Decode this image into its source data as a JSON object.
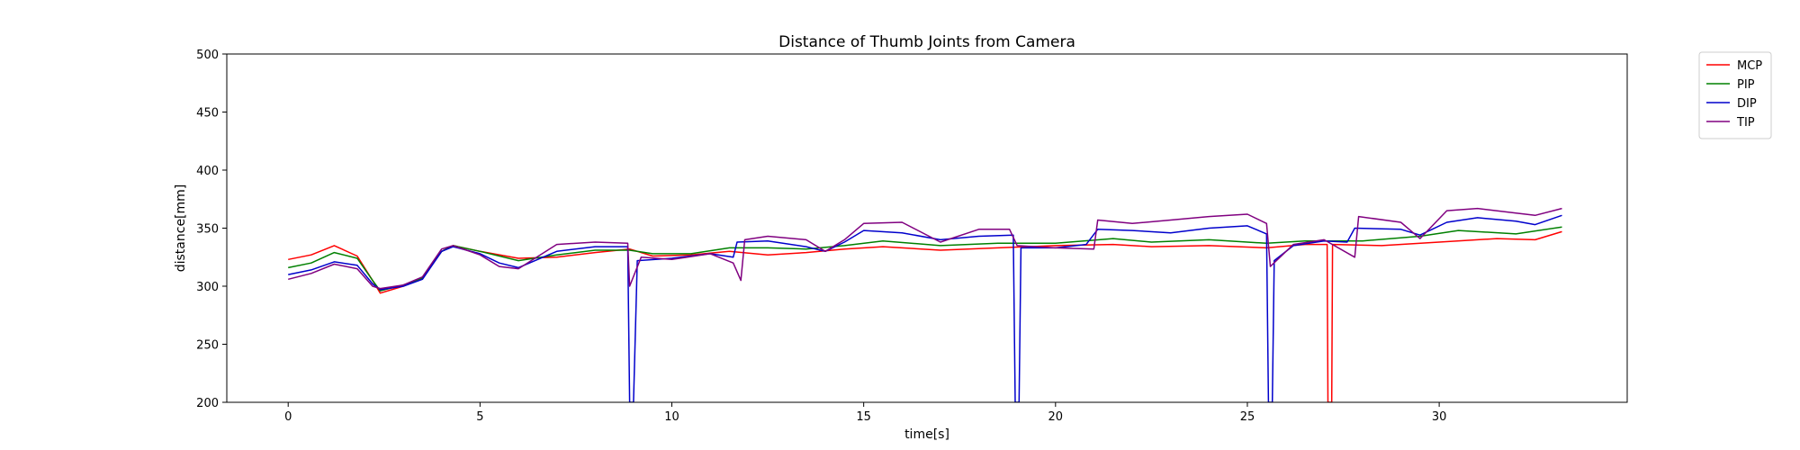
{
  "chart_data": {
    "type": "line",
    "title": "Distance of Thumb Joints from Camera",
    "xlabel": "time[s]",
    "ylabel": "distance[mm]",
    "xlim": [
      -1.6,
      34.9
    ],
    "ylim": [
      200,
      500
    ],
    "xticks": [
      0,
      5,
      10,
      15,
      20,
      25,
      30
    ],
    "yticks": [
      200,
      250,
      300,
      350,
      400,
      450,
      500
    ],
    "legend_position": "upper-right-outside",
    "grid": false,
    "series": [
      {
        "name": "MCP",
        "color": "#ff0000",
        "points": [
          [
            0,
            323
          ],
          [
            0.6,
            327
          ],
          [
            1.2,
            335
          ],
          [
            1.8,
            326
          ],
          [
            2.2,
            305
          ],
          [
            2.4,
            294
          ],
          [
            3.0,
            300
          ],
          [
            3.5,
            307
          ],
          [
            4.0,
            330
          ],
          [
            4.3,
            335
          ],
          [
            5.0,
            330
          ],
          [
            6.0,
            324
          ],
          [
            7.0,
            325
          ],
          [
            8.0,
            329
          ],
          [
            8.9,
            332
          ],
          [
            9.5,
            326
          ],
          [
            10.5,
            327
          ],
          [
            11.5,
            330
          ],
          [
            12.5,
            327
          ],
          [
            13.5,
            329
          ],
          [
            14.5,
            332
          ],
          [
            15.5,
            334
          ],
          [
            17.0,
            331
          ],
          [
            18.5,
            333
          ],
          [
            20.0,
            335
          ],
          [
            21.5,
            336
          ],
          [
            22.5,
            334
          ],
          [
            24.0,
            335
          ],
          [
            25.5,
            333
          ],
          [
            26.5,
            336
          ],
          [
            27.08,
            336
          ],
          [
            27.1,
            200
          ],
          [
            27.2,
            200
          ],
          [
            27.22,
            336
          ],
          [
            28.5,
            335
          ],
          [
            30.0,
            338
          ],
          [
            31.5,
            341
          ],
          [
            32.5,
            340
          ],
          [
            33.2,
            347
          ]
        ]
      },
      {
        "name": "PIP",
        "color": "#008000",
        "points": [
          [
            0,
            316
          ],
          [
            0.6,
            320
          ],
          [
            1.2,
            329
          ],
          [
            1.8,
            324
          ],
          [
            2.2,
            305
          ],
          [
            2.4,
            296
          ],
          [
            3.0,
            301
          ],
          [
            3.5,
            307
          ],
          [
            4.0,
            330
          ],
          [
            4.3,
            335
          ],
          [
            5.0,
            330
          ],
          [
            6.0,
            322
          ],
          [
            7.0,
            327
          ],
          [
            8.0,
            331
          ],
          [
            8.9,
            331
          ],
          [
            9.5,
            328
          ],
          [
            10.5,
            328
          ],
          [
            11.5,
            333
          ],
          [
            12.5,
            333
          ],
          [
            13.5,
            332
          ],
          [
            14.5,
            335
          ],
          [
            15.5,
            339
          ],
          [
            17.0,
            335
          ],
          [
            18.5,
            337
          ],
          [
            20.0,
            337
          ],
          [
            21.5,
            341
          ],
          [
            22.5,
            338
          ],
          [
            24.0,
            340
          ],
          [
            25.5,
            337
          ],
          [
            26.5,
            339
          ],
          [
            28.0,
            339
          ],
          [
            29.5,
            343
          ],
          [
            30.5,
            348
          ],
          [
            32.0,
            345
          ],
          [
            33.2,
            351
          ]
        ]
      },
      {
        "name": "DIP",
        "color": "#0000cc",
        "points": [
          [
            0,
            310
          ],
          [
            0.6,
            314
          ],
          [
            1.2,
            321
          ],
          [
            1.8,
            318
          ],
          [
            2.2,
            302
          ],
          [
            2.4,
            297
          ],
          [
            3.0,
            300
          ],
          [
            3.5,
            306
          ],
          [
            4.0,
            330
          ],
          [
            4.3,
            334
          ],
          [
            5.0,
            328
          ],
          [
            5.5,
            320
          ],
          [
            6.0,
            316
          ],
          [
            7.0,
            330
          ],
          [
            8.0,
            334
          ],
          [
            8.85,
            334
          ],
          [
            8.9,
            200
          ],
          [
            9.0,
            200
          ],
          [
            9.1,
            322
          ],
          [
            10.0,
            324
          ],
          [
            11.0,
            328
          ],
          [
            11.6,
            325
          ],
          [
            11.7,
            338
          ],
          [
            12.5,
            339
          ],
          [
            13.5,
            334
          ],
          [
            14.0,
            330
          ],
          [
            14.5,
            338
          ],
          [
            15.0,
            348
          ],
          [
            16.0,
            346
          ],
          [
            17.0,
            340
          ],
          [
            18.0,
            343
          ],
          [
            18.9,
            344
          ],
          [
            18.95,
            200
          ],
          [
            19.05,
            200
          ],
          [
            19.1,
            333
          ],
          [
            20.0,
            333
          ],
          [
            20.8,
            336
          ],
          [
            21.1,
            349
          ],
          [
            22.0,
            348
          ],
          [
            23.0,
            346
          ],
          [
            24.0,
            350
          ],
          [
            25.0,
            352
          ],
          [
            25.5,
            345
          ],
          [
            25.55,
            200
          ],
          [
            25.65,
            200
          ],
          [
            25.7,
            322
          ],
          [
            26.2,
            335
          ],
          [
            27.0,
            339
          ],
          [
            27.6,
            338
          ],
          [
            27.8,
            350
          ],
          [
            29.0,
            349
          ],
          [
            29.5,
            344
          ],
          [
            30.2,
            355
          ],
          [
            31.0,
            359
          ],
          [
            32.0,
            356
          ],
          [
            32.5,
            353
          ],
          [
            33.2,
            361
          ]
        ]
      },
      {
        "name": "TIP",
        "color": "#800080",
        "points": [
          [
            0,
            306
          ],
          [
            0.6,
            311
          ],
          [
            1.2,
            319
          ],
          [
            1.8,
            315
          ],
          [
            2.2,
            300
          ],
          [
            2.4,
            298
          ],
          [
            3.0,
            301
          ],
          [
            3.5,
            308
          ],
          [
            4.0,
            332
          ],
          [
            4.3,
            335
          ],
          [
            5.0,
            327
          ],
          [
            5.5,
            317
          ],
          [
            6.0,
            315
          ],
          [
            7.0,
            336
          ],
          [
            8.0,
            338
          ],
          [
            8.85,
            337
          ],
          [
            8.9,
            300
          ],
          [
            9.2,
            325
          ],
          [
            10.0,
            323
          ],
          [
            11.0,
            328
          ],
          [
            11.6,
            320
          ],
          [
            11.8,
            305
          ],
          [
            11.9,
            340
          ],
          [
            12.5,
            343
          ],
          [
            13.5,
            340
          ],
          [
            14.0,
            330
          ],
          [
            14.5,
            340
          ],
          [
            15.0,
            354
          ],
          [
            16.0,
            355
          ],
          [
            17.0,
            338
          ],
          [
            18.0,
            349
          ],
          [
            18.8,
            349
          ],
          [
            19.0,
            335
          ],
          [
            20.0,
            333
          ],
          [
            21.0,
            332
          ],
          [
            21.1,
            357
          ],
          [
            22.0,
            354
          ],
          [
            23.0,
            357
          ],
          [
            24.0,
            360
          ],
          [
            25.0,
            362
          ],
          [
            25.5,
            354
          ],
          [
            25.6,
            317
          ],
          [
            26.2,
            336
          ],
          [
            27.0,
            340
          ],
          [
            27.8,
            325
          ],
          [
            27.9,
            360
          ],
          [
            29.0,
            355
          ],
          [
            29.5,
            341
          ],
          [
            30.2,
            365
          ],
          [
            31.0,
            367
          ],
          [
            32.0,
            363
          ],
          [
            32.5,
            361
          ],
          [
            33.2,
            367
          ]
        ]
      }
    ]
  }
}
